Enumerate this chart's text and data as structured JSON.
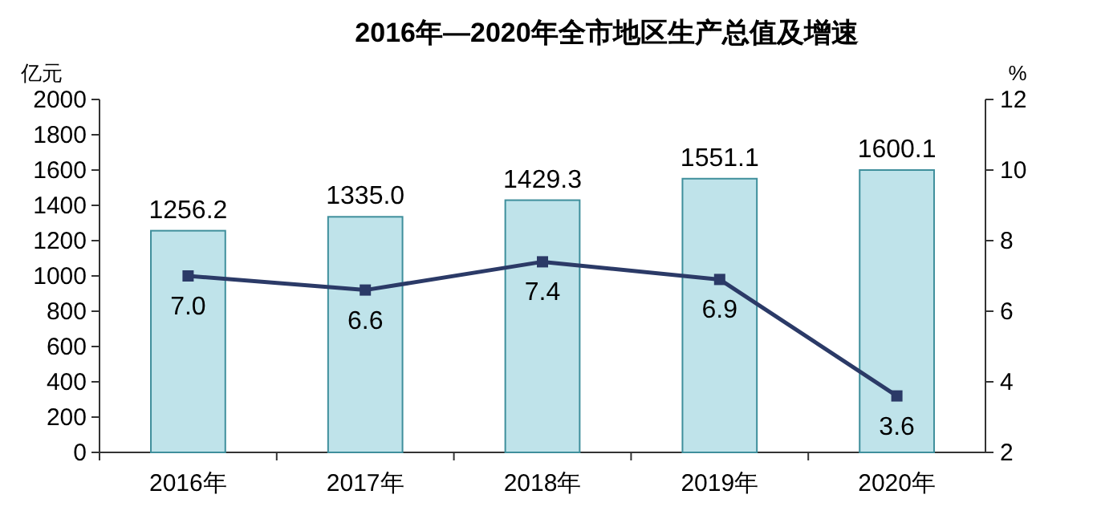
{
  "chart_data": {
    "type": "bar",
    "title": "2016年—2020年全市地区生产总值及增速",
    "ylabel": "亿元",
    "y2label": "%",
    "categories": [
      "2016年",
      "2017年",
      "2018年",
      "2019年",
      "2020年"
    ],
    "series": [
      {
        "color": "#bfe3ea",
        "values": [
          1256.2,
          1335.0,
          1429.3,
          1551.1,
          1600.1
        ],
        "value_labels": [
          "1256.2",
          "1335.0",
          "1429.3",
          "1551.1",
          "1600.1"
        ]
      },
      {
        "type": "line",
        "axis": "y2",
        "color": "#2b3a67",
        "marker": "square",
        "values": [
          7.0,
          6.6,
          7.4,
          6.9,
          3.6
        ],
        "value_labels": [
          "7.0",
          "6.6",
          "7.4",
          "6.9",
          "3.6"
        ]
      }
    ],
    "ylim": [
      0,
      2000
    ],
    "yticks": [
      0,
      200,
      400,
      600,
      800,
      1000,
      1200,
      1400,
      1600,
      1800,
      2000
    ],
    "y2lim": [
      2,
      12
    ],
    "y2ticks": [
      2,
      4,
      6,
      8,
      10,
      12
    ]
  }
}
